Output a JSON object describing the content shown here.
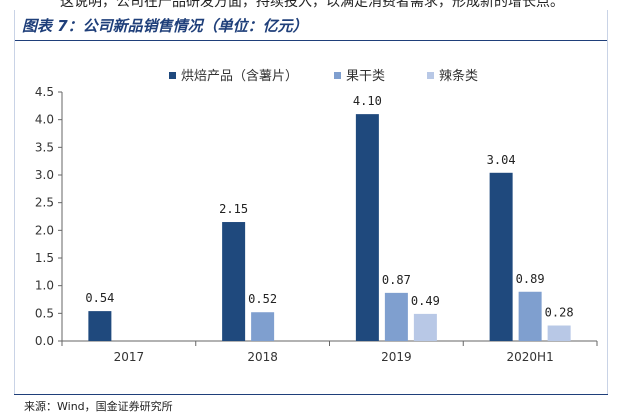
{
  "top_text": "这说明，公司在产品研发方面，持续投入，以满足消费者需求，形成新的增长点。",
  "header": {
    "title": "图表 7：公司新品销售情况（单位：亿元）"
  },
  "source": "来源：Wind，国金证券研究所",
  "chart_data": {
    "type": "bar",
    "title": "",
    "xlabel": "",
    "ylabel": "",
    "categories": [
      "2017",
      "2018",
      "2019",
      "2020H1"
    ],
    "ylim": [
      0,
      4.5
    ],
    "yticks": [
      "0.0",
      "0.5",
      "1.0",
      "1.5",
      "2.0",
      "2.5",
      "3.0",
      "3.5",
      "4.0",
      "4.5"
    ],
    "grid": false,
    "legend_position": "top",
    "series": [
      {
        "name": "烘焙产品（含薯片）",
        "color": "#1f497d",
        "values": [
          0.54,
          2.15,
          4.1,
          3.04
        ],
        "labels": [
          "0.54",
          "2.15",
          "4.10",
          "3.04"
        ]
      },
      {
        "name": "果干类",
        "color": "#7f9fcf",
        "values": [
          null,
          0.52,
          0.87,
          0.89
        ],
        "labels": [
          "",
          "0.52",
          "0.87",
          "0.89"
        ]
      },
      {
        "name": "辣条类",
        "color": "#b8c8e6",
        "values": [
          null,
          null,
          0.49,
          0.28
        ],
        "labels": [
          "",
          "",
          "0.49",
          "0.28"
        ]
      }
    ]
  }
}
